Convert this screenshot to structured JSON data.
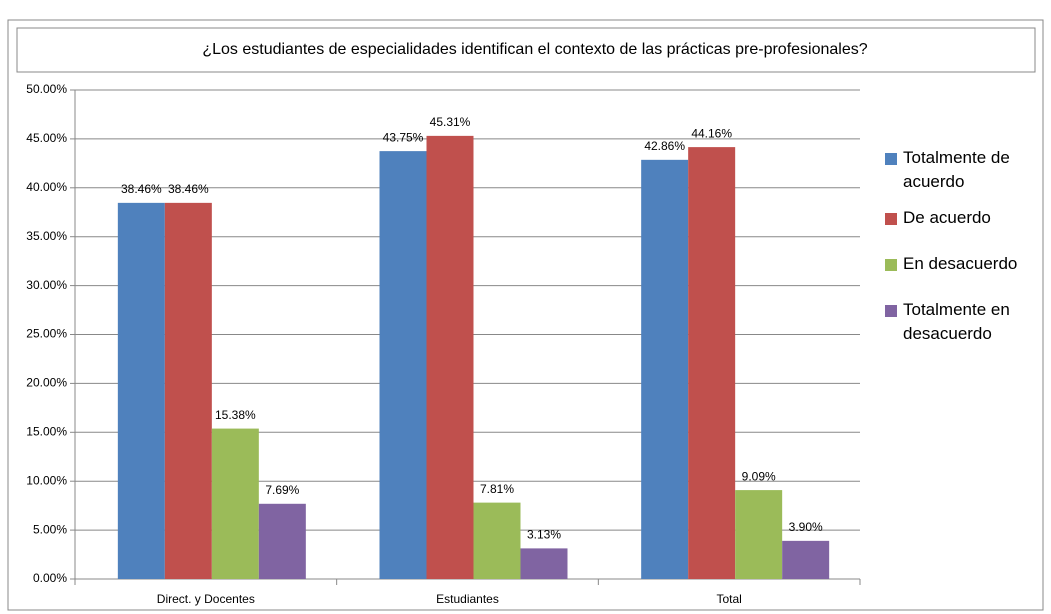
{
  "chart_data": {
    "type": "bar",
    "title": "¿Los estudiantes de especialidades identifican el contexto de las prácticas pre-profesionales?",
    "categories": [
      "Direct. y Docentes",
      "Estudiantes",
      "Total"
    ],
    "series": [
      {
        "name": "Totalmente de acuerdo",
        "color": "#4f81bd",
        "values": [
          38.46,
          43.75,
          42.86
        ],
        "value_labels": [
          "38.46%",
          "43.75%",
          "42.86%"
        ]
      },
      {
        "name": "De acuerdo",
        "color": "#c0504d",
        "values": [
          38.46,
          45.31,
          44.16
        ],
        "value_labels": [
          "38.46%",
          "45.31%",
          "44.16%"
        ]
      },
      {
        "name": "En desacuerdo",
        "color": "#9bbb59",
        "values": [
          15.38,
          7.81,
          9.09
        ],
        "value_labels": [
          "15.38%",
          "7.81%",
          "9.09%"
        ]
      },
      {
        "name": "Totalmente en desacuerdo",
        "color": "#8064a2",
        "values": [
          7.69,
          3.13,
          3.9
        ],
        "value_labels": [
          "7.69%",
          "3.13%",
          "3.90%"
        ]
      }
    ],
    "ylim": [
      0,
      50
    ],
    "yticks": [
      {
        "value": 0,
        "label": "0.00%"
      },
      {
        "value": 5,
        "label": "5.00%"
      },
      {
        "value": 10,
        "label": "10.00%"
      },
      {
        "value": 15,
        "label": "15.00%"
      },
      {
        "value": 20,
        "label": "20.00%"
      },
      {
        "value": 25,
        "label": "25.00%"
      },
      {
        "value": 30,
        "label": "30.00%"
      },
      {
        "value": 35,
        "label": "35.00%"
      },
      {
        "value": 40,
        "label": "40.00%"
      },
      {
        "value": 45,
        "label": "45.00%"
      },
      {
        "value": 50,
        "label": "50.00%"
      }
    ],
    "grid": true,
    "legend": "right"
  }
}
